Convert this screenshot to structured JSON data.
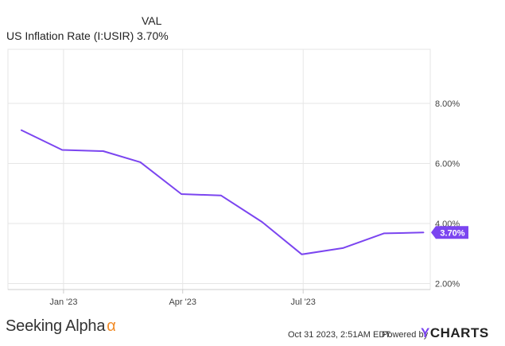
{
  "legend": {
    "column_header": "VAL",
    "series_name": "US Inflation Rate (I:USIR)",
    "series_value": "3.70%"
  },
  "chart_data": {
    "type": "line",
    "series": [
      {
        "name": "US Inflation Rate (I:USIR)",
        "color": "#7b45f0",
        "x": [
          "2022-11-30",
          "2022-12-31",
          "2023-01-31",
          "2023-02-28",
          "2023-03-31",
          "2023-04-30",
          "2023-05-31",
          "2023-06-30",
          "2023-07-31",
          "2023-08-31",
          "2023-09-30"
        ],
        "values": [
          7.11,
          6.45,
          6.41,
          6.04,
          4.98,
          4.93,
          4.05,
          2.97,
          3.18,
          3.67,
          3.7
        ]
      }
    ],
    "x_tick_labels": [
      "Jan '23",
      "Apr '23",
      "Jul '23"
    ],
    "x_tick_dates": [
      "2023-01-01",
      "2023-04-01",
      "2023-07-01"
    ],
    "y_ticks": [
      2,
      4,
      6,
      8
    ],
    "y_tick_labels": [
      "2.00%",
      "4.00%",
      "6.00%",
      "8.00%"
    ],
    "y_axis_side": "right",
    "grid": true,
    "end_label": "3.70%"
  },
  "footer": {
    "brand": "Seeking Alpha",
    "brand_mark": "α",
    "timestamp": "Oct 31 2023, 2:51AM EDT.",
    "powered_by": "Powered by",
    "provider_initial": "Y",
    "provider_rest": "CHARTS"
  },
  "colors": {
    "line": "#7b45f0",
    "grid": "#e6e6e6",
    "axis": "#cccccc",
    "label_bg": "#7b45f0"
  }
}
